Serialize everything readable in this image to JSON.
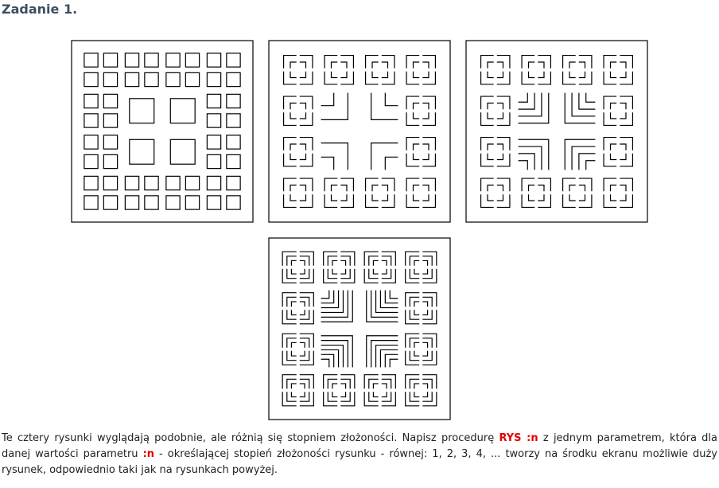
{
  "title": "Zadanie 1.",
  "figures": [
    {
      "label": "",
      "level": 1
    },
    {
      "label": "",
      "level": 2
    },
    {
      "label": "",
      "level": 3
    },
    {
      "label": "",
      "level": 4
    }
  ],
  "paragraph": {
    "part1": "Te cztery rysunki wyglądają podobnie, ale różnią się stopniem złożoności. Napisz procedurę ",
    "keyword1": "RYS :n",
    "part2": " z jednym parametrem, która dla danej wartości parametru ",
    "keyword2": ":n",
    "part3": " - określającej stopień złożoności rysunku - równej: 1, 2, 3, 4, ... tworzy na środku ekranu możliwie duży rysunek, odpowiednio taki jak na rysunkach powyżej."
  },
  "colors": {
    "title": "#3d4d61",
    "keyword": "#e00000",
    "line": "#000000"
  }
}
